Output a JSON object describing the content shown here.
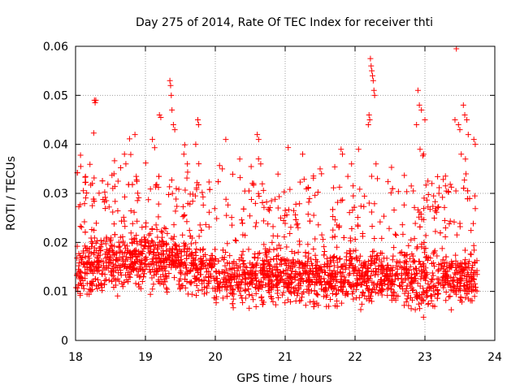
{
  "chart_data": {
    "type": "scatter",
    "title": "Day 275 of 2014, Rate Of TEC Index for receiver thti",
    "xlabel": "GPS time / hours",
    "ylabel": "ROTI / TECUs",
    "xlim": [
      18,
      24
    ],
    "ylim": [
      0,
      0.06
    ],
    "grid": true,
    "x_ticks": [
      "18",
      "19",
      "20",
      "21",
      "22",
      "23",
      "24"
    ],
    "y_ticks": [
      "0",
      "0.01",
      "0.02",
      "0.03",
      "0.04",
      "0.05",
      "0.06"
    ],
    "marker": "+",
    "series": [
      {
        "name": "ROTI",
        "color": "#ff0000",
        "baseline_trend": {
          "x": [
            18.0,
            18.5,
            19.0,
            19.5,
            20.0,
            20.5,
            21.0,
            21.5,
            22.0,
            22.5,
            23.0,
            23.5,
            23.75
          ],
          "y": [
            0.015,
            0.016,
            0.017,
            0.016,
            0.013,
            0.013,
            0.014,
            0.013,
            0.013,
            0.013,
            0.012,
            0.013,
            0.013
          ]
        },
        "points": [
          [
            18.27,
            0.049
          ],
          [
            18.28,
            0.0485
          ],
          [
            18.29,
            0.049
          ],
          [
            18.26,
            0.0423
          ],
          [
            18.55,
            0.034
          ],
          [
            18.7,
            0.038
          ],
          [
            18.85,
            0.042
          ],
          [
            18.72,
            0.036
          ],
          [
            19.1,
            0.041
          ],
          [
            19.2,
            0.046
          ],
          [
            19.22,
            0.0455
          ],
          [
            19.35,
            0.053
          ],
          [
            19.36,
            0.052
          ],
          [
            19.37,
            0.05
          ],
          [
            19.38,
            0.047
          ],
          [
            19.4,
            0.044
          ],
          [
            19.42,
            0.043
          ],
          [
            19.55,
            0.038
          ],
          [
            19.6,
            0.036
          ],
          [
            19.75,
            0.045
          ],
          [
            19.76,
            0.044
          ],
          [
            19.72,
            0.04
          ],
          [
            20.15,
            0.041
          ],
          [
            20.1,
            0.035
          ],
          [
            20.35,
            0.037
          ],
          [
            20.6,
            0.042
          ],
          [
            20.62,
            0.041
          ],
          [
            20.65,
            0.036
          ],
          [
            21.25,
            0.038
          ],
          [
            21.5,
            0.035
          ],
          [
            21.52,
            0.034
          ],
          [
            21.8,
            0.039
          ],
          [
            21.82,
            0.038
          ],
          [
            21.95,
            0.036
          ],
          [
            22.05,
            0.039
          ],
          [
            22.22,
            0.0575
          ],
          [
            22.23,
            0.056
          ],
          [
            22.24,
            0.055
          ],
          [
            22.25,
            0.054
          ],
          [
            22.26,
            0.053
          ],
          [
            22.27,
            0.051
          ],
          [
            22.28,
            0.05
          ],
          [
            22.2,
            0.046
          ],
          [
            22.21,
            0.045
          ],
          [
            22.19,
            0.044
          ],
          [
            22.3,
            0.036
          ],
          [
            22.32,
            0.033
          ],
          [
            22.9,
            0.051
          ],
          [
            22.92,
            0.048
          ],
          [
            22.95,
            0.047
          ],
          [
            22.88,
            0.044
          ],
          [
            22.93,
            0.039
          ],
          [
            23.0,
            0.045
          ],
          [
            22.98,
            0.038
          ],
          [
            23.1,
            0.032
          ],
          [
            23.2,
            0.03
          ],
          [
            23.45,
            0.0595
          ],
          [
            23.43,
            0.045
          ],
          [
            23.48,
            0.044
          ],
          [
            23.5,
            0.043
          ],
          [
            23.55,
            0.048
          ],
          [
            23.57,
            0.046
          ],
          [
            23.6,
            0.045
          ],
          [
            23.62,
            0.042
          ],
          [
            23.52,
            0.038
          ],
          [
            23.58,
            0.037
          ],
          [
            23.7,
            0.041
          ],
          [
            23.72,
            0.04
          ]
        ]
      }
    ]
  }
}
